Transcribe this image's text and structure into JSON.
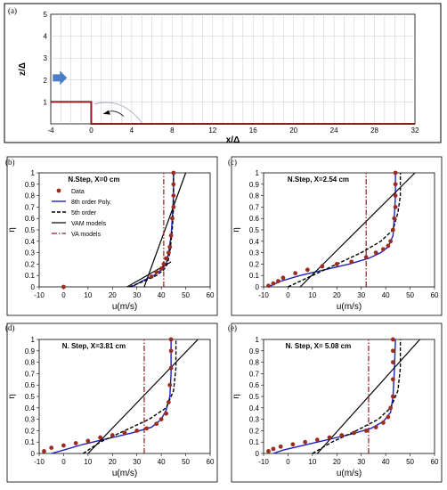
{
  "panel_labels": [
    "(a)",
    "(b)",
    "(c)",
    "(d)",
    "(e)"
  ],
  "colors": {
    "data_marker": "#9b2d1f",
    "poly8": "#2020c0",
    "order5": "#000000",
    "vam": "#000000",
    "va": "#8b1a1a",
    "step_line": "#8b1a1a",
    "inflow_arrow": "#4a7fc8",
    "grid": "#c8c8c8"
  },
  "chart_data": [
    {
      "type": "diagram",
      "panel": "(a)",
      "xlabel": "x/Δ",
      "ylabel": "z/Δ",
      "xlim": [
        -4,
        32
      ],
      "ylim": [
        0,
        5
      ],
      "xticks": [
        "-4",
        "0",
        "4",
        "8",
        "12",
        "16",
        "20",
        "24",
        "28",
        "32"
      ],
      "yticks": [
        "1",
        "2",
        "3",
        "4",
        "5"
      ],
      "step_height": 1,
      "step_x": 0,
      "grid": true
    },
    {
      "type": "scatter",
      "panel": "(b)",
      "title": "N.Step, X=0 cm",
      "xlabel": "u(m/s)",
      "ylabel": "η",
      "xlim": [
        -10,
        60
      ],
      "ylim": [
        0,
        1
      ],
      "xticks": [
        "-10",
        "0",
        "10",
        "20",
        "30",
        "40",
        "50",
        "60"
      ],
      "yticks": [
        "0",
        "0.1",
        "0.2",
        "0.3",
        "0.4",
        "0.5",
        "0.6",
        "0.7",
        "0.8",
        "0.9",
        "1"
      ],
      "legend": [
        "Data",
        "8th order Poly.",
        "5th order",
        "VAM models",
        "VA models"
      ],
      "series": [
        {
          "name": "Data",
          "points": [
            [
              0,
              0
            ],
            [
              36,
              0.09
            ],
            [
              38,
              0.13
            ],
            [
              40,
              0.16
            ],
            [
              41,
              0.2
            ],
            [
              42,
              0.25
            ],
            [
              43,
              0.3
            ],
            [
              43.5,
              0.35
            ],
            [
              44,
              0.45
            ],
            [
              44.5,
              0.6
            ],
            [
              45,
              0.7
            ],
            [
              45,
              0.8
            ],
            [
              45,
              0.9
            ],
            [
              45,
              1.0
            ]
          ]
        },
        {
          "name": "8th order Poly.",
          "points": [
            [
              28,
              0
            ],
            [
              32,
              0.05
            ],
            [
              37,
              0.1
            ],
            [
              40,
              0.15
            ],
            [
              42,
              0.2
            ],
            [
              43,
              0.3
            ],
            [
              44,
              0.45
            ],
            [
              44.5,
              0.6
            ],
            [
              45,
              0.8
            ],
            [
              45,
              1.0
            ]
          ]
        },
        {
          "name": "5th order",
          "points": [
            [
              27,
              0
            ],
            [
              33,
              0.05
            ],
            [
              38,
              0.1
            ],
            [
              41,
              0.15
            ],
            [
              42.5,
              0.2
            ],
            [
              43.5,
              0.3
            ],
            [
              44.5,
              0.5
            ],
            [
              45,
              0.7
            ],
            [
              45,
              1.0
            ]
          ]
        },
        {
          "name": "VAM models",
          "points": [
            [
              33,
              0
            ],
            [
              50,
              1.0
            ]
          ]
        },
        {
          "name": "VAM models",
          "points": [
            [
              26,
              0
            ],
            [
              44,
              0.22
            ]
          ]
        },
        {
          "name": "VA models",
          "points": [
            [
              41,
              0
            ],
            [
              41,
              1.0
            ]
          ]
        }
      ]
    },
    {
      "type": "scatter",
      "panel": "(c)",
      "title": "N.Step, X=2.54 cm",
      "xlabel": "u(m/s)",
      "ylabel": "η",
      "xlim": [
        -10,
        60
      ],
      "ylim": [
        0,
        1
      ],
      "xticks": [
        "-10",
        "0",
        "10",
        "20",
        "30",
        "40",
        "50",
        "60"
      ],
      "yticks": [
        "0",
        "0.1",
        "0.2",
        "0.3",
        "0.4",
        "0.5",
        "0.6",
        "0.7",
        "0.8",
        "0.9",
        "1"
      ],
      "series": [
        {
          "name": "Data",
          "points": [
            [
              -8,
              0.01
            ],
            [
              -6,
              0.03
            ],
            [
              -4,
              0.05
            ],
            [
              -2,
              0.08
            ],
            [
              3,
              0.12
            ],
            [
              8,
              0.15
            ],
            [
              14,
              0.18
            ],
            [
              20,
              0.2
            ],
            [
              26,
              0.22
            ],
            [
              32,
              0.26
            ],
            [
              36,
              0.3
            ],
            [
              39,
              0.33
            ],
            [
              41,
              0.36
            ],
            [
              42,
              0.4
            ],
            [
              43,
              0.5
            ],
            [
              43.5,
              0.6
            ],
            [
              44,
              0.7
            ],
            [
              44,
              0.8
            ],
            [
              44,
              0.9
            ],
            [
              44,
              1.0
            ]
          ]
        },
        {
          "name": "8th order Poly.",
          "points": [
            [
              -8,
              0
            ],
            [
              -3,
              0.05
            ],
            [
              5,
              0.1
            ],
            [
              15,
              0.15
            ],
            [
              25,
              0.2
            ],
            [
              33,
              0.25
            ],
            [
              38,
              0.3
            ],
            [
              41,
              0.35
            ],
            [
              43,
              0.45
            ],
            [
              43.5,
              0.6
            ],
            [
              44,
              0.8
            ],
            [
              44,
              1.0
            ]
          ]
        },
        {
          "name": "5th order",
          "points": [
            [
              0,
              0
            ],
            [
              10,
              0.1
            ],
            [
              20,
              0.2
            ],
            [
              30,
              0.3
            ],
            [
              38,
              0.4
            ],
            [
              43,
              0.5
            ],
            [
              45,
              0.65
            ],
            [
              46,
              0.8
            ],
            [
              46,
              1.0
            ]
          ]
        },
        {
          "name": "VAM models",
          "points": [
            [
              5,
              0
            ],
            [
              52,
              1.0
            ]
          ]
        },
        {
          "name": "VA models",
          "points": [
            [
              32,
              0
            ],
            [
              32,
              1.0
            ]
          ]
        }
      ]
    },
    {
      "type": "scatter",
      "panel": "(d)",
      "title": "N. Step, X=3.81 cm",
      "xlabel": "u(m/s)",
      "ylabel": "η",
      "xlim": [
        -10,
        60
      ],
      "ylim": [
        0,
        1
      ],
      "xticks": [
        "-10",
        "0",
        "10",
        "20",
        "30",
        "40",
        "50",
        "60"
      ],
      "yticks": [
        "0",
        "0.1",
        "0.2",
        "0.3",
        "0.4",
        "0.5",
        "0.6",
        "0.7",
        "0.8",
        "0.9",
        "1"
      ],
      "series": [
        {
          "name": "Data",
          "points": [
            [
              -8,
              0.02
            ],
            [
              -5,
              0.05
            ],
            [
              0,
              0.07
            ],
            [
              5,
              0.09
            ],
            [
              10,
              0.11
            ],
            [
              15,
              0.14
            ],
            [
              20,
              0.16
            ],
            [
              25,
              0.18
            ],
            [
              30,
              0.2
            ],
            [
              34,
              0.22
            ],
            [
              38,
              0.26
            ],
            [
              40,
              0.3
            ],
            [
              42,
              0.35
            ],
            [
              43,
              0.45
            ],
            [
              43.5,
              0.6
            ],
            [
              44,
              0.75
            ],
            [
              44,
              0.9
            ],
            [
              44,
              1.0
            ]
          ]
        },
        {
          "name": "8th order Poly.",
          "points": [
            [
              -5,
              0
            ],
            [
              0,
              0.03
            ],
            [
              8,
              0.08
            ],
            [
              18,
              0.13
            ],
            [
              28,
              0.18
            ],
            [
              36,
              0.23
            ],
            [
              40,
              0.3
            ],
            [
              42,
              0.38
            ],
            [
              43.5,
              0.5
            ],
            [
              44,
              0.7
            ],
            [
              44,
              1.0
            ]
          ]
        },
        {
          "name": "5th order",
          "points": [
            [
              8,
              0
            ],
            [
              15,
              0.1
            ],
            [
              25,
              0.2
            ],
            [
              35,
              0.3
            ],
            [
              42,
              0.4
            ],
            [
              45,
              0.55
            ],
            [
              46,
              0.75
            ],
            [
              46,
              1.0
            ]
          ]
        },
        {
          "name": "VAM models",
          "points": [
            [
              10,
              0
            ],
            [
              55,
              1.0
            ]
          ]
        },
        {
          "name": "VA models",
          "points": [
            [
              33,
              0
            ],
            [
              33,
              1.0
            ]
          ]
        }
      ]
    },
    {
      "type": "scatter",
      "panel": "(e)",
      "title": "N. Step, X= 5.08 cm",
      "xlabel": "u(m/s)",
      "ylabel": "η",
      "xlim": [
        -10,
        60
      ],
      "ylim": [
        0,
        1
      ],
      "xticks": [
        "-10",
        "0",
        "10",
        "20",
        "30",
        "40",
        "50",
        "60"
      ],
      "yticks": [
        "0",
        "0.1",
        "0.2",
        "0.3",
        "0.4",
        "0.5",
        "0.6",
        "0.7",
        "0.8",
        "0.9",
        "1"
      ],
      "series": [
        {
          "name": "Data",
          "points": [
            [
              -8,
              0.02
            ],
            [
              -6,
              0.04
            ],
            [
              -3,
              0.06
            ],
            [
              2,
              0.08
            ],
            [
              7,
              0.1
            ],
            [
              12,
              0.12
            ],
            [
              17,
              0.14
            ],
            [
              22,
              0.16
            ],
            [
              27,
              0.18
            ],
            [
              32,
              0.2
            ],
            [
              36,
              0.23
            ],
            [
              39,
              0.27
            ],
            [
              41,
              0.32
            ],
            [
              42,
              0.4
            ],
            [
              43,
              0.5
            ],
            [
              43,
              0.65
            ],
            [
              43,
              0.8
            ],
            [
              43,
              0.9
            ],
            [
              43,
              1.0
            ]
          ]
        },
        {
          "name": "8th order Poly.",
          "points": [
            [
              -6,
              0
            ],
            [
              -2,
              0.03
            ],
            [
              6,
              0.07
            ],
            [
              16,
              0.12
            ],
            [
              26,
              0.17
            ],
            [
              34,
              0.22
            ],
            [
              39,
              0.28
            ],
            [
              42,
              0.36
            ],
            [
              43,
              0.5
            ],
            [
              43.5,
              0.7
            ],
            [
              44,
              1.0
            ]
          ]
        },
        {
          "name": "5th order",
          "points": [
            [
              10,
              0
            ],
            [
              18,
              0.1
            ],
            [
              28,
              0.2
            ],
            [
              37,
              0.3
            ],
            [
              42,
              0.4
            ],
            [
              45,
              0.55
            ],
            [
              46,
              0.75
            ],
            [
              46,
              1.0
            ]
          ]
        },
        {
          "name": "VAM models",
          "points": [
            [
              12,
              0
            ],
            [
              54,
              1.0
            ]
          ]
        },
        {
          "name": "VA models",
          "points": [
            [
              33,
              0
            ],
            [
              33,
              1.0
            ]
          ]
        }
      ]
    }
  ]
}
